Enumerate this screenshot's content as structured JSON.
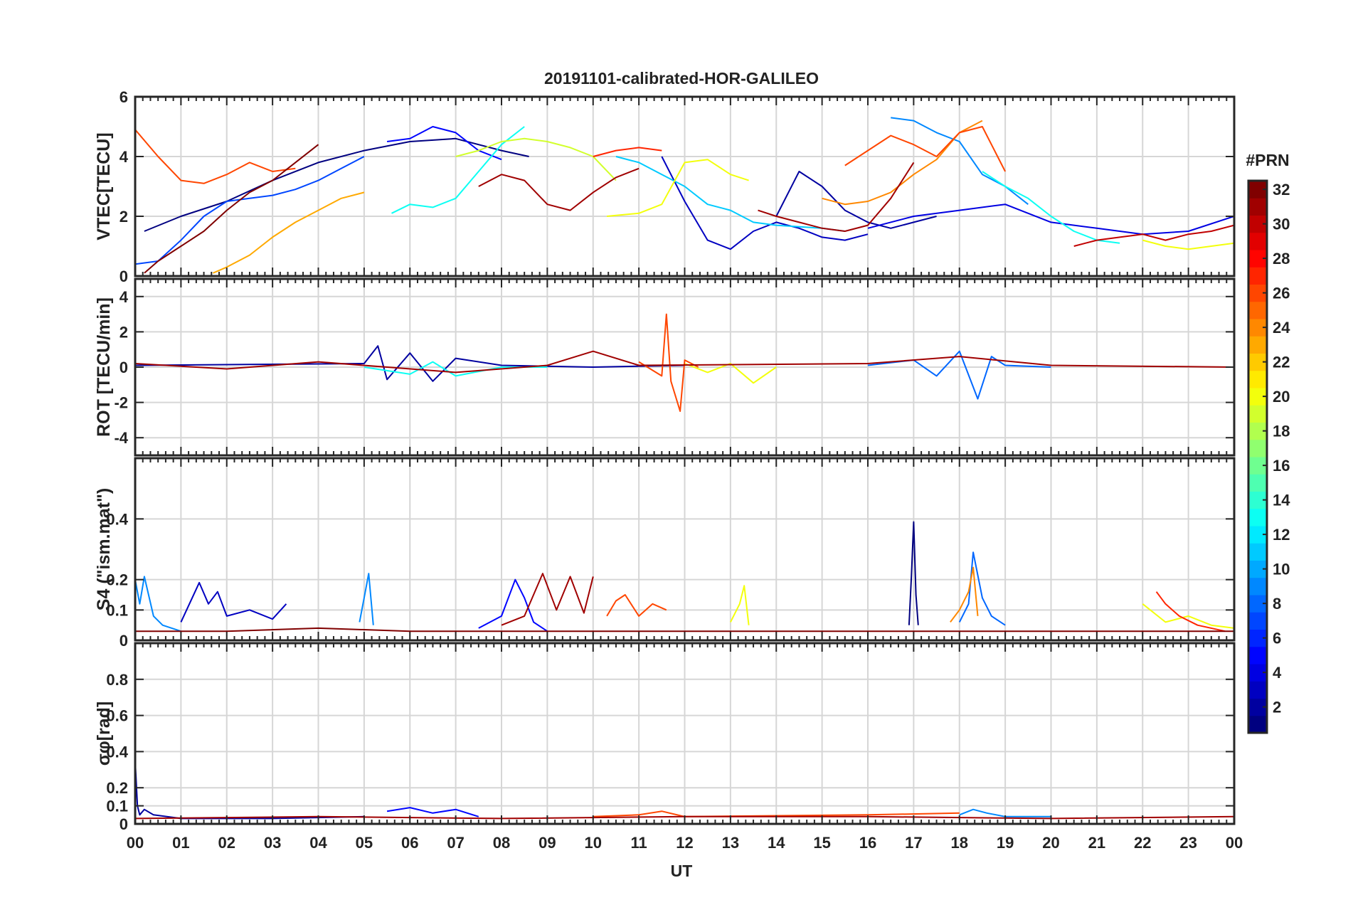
{
  "title": "20191101-calibrated-HOR-GALILEO",
  "xlabel": "UT",
  "x_ticks": [
    "00",
    "01",
    "02",
    "03",
    "04",
    "05",
    "06",
    "07",
    "08",
    "09",
    "10",
    "11",
    "12",
    "13",
    "14",
    "15",
    "16",
    "17",
    "18",
    "19",
    "20",
    "21",
    "22",
    "23",
    "00"
  ],
  "colorbar": {
    "label": "#PRN",
    "ticks": [
      "2",
      "4",
      "6",
      "8",
      "10",
      "12",
      "14",
      "16",
      "18",
      "20",
      "22",
      "24",
      "26",
      "28",
      "30",
      "32"
    ],
    "range": [
      1,
      32
    ]
  },
  "chart_data": [
    {
      "type": "line",
      "ylabel": "VTEC[TECU]",
      "ylim": [
        0,
        6
      ],
      "yticks": [
        "0",
        "2",
        "4",
        "6"
      ],
      "xlim": [
        0,
        24
      ],
      "series": [
        {
          "prn": 1,
          "x": [
            0.2,
            1.0,
            2.0,
            3.0,
            4.0,
            5.0,
            6.0,
            7.0,
            8.0,
            8.6
          ],
          "y": [
            1.5,
            2.0,
            2.5,
            3.2,
            3.8,
            4.2,
            4.5,
            4.6,
            4.2,
            4.0
          ]
        },
        {
          "prn": 2,
          "x": [
            14.0,
            14.5,
            15.0,
            15.5,
            16.0,
            16.5,
            17.0,
            17.5
          ],
          "y": [
            2.0,
            3.5,
            3.0,
            2.2,
            1.8,
            1.6,
            1.8,
            2.0
          ]
        },
        {
          "prn": 3,
          "x": [
            11.5,
            12.0,
            12.5,
            13.0,
            13.5,
            14.0,
            14.5,
            15.0,
            15.5,
            16.0
          ],
          "y": [
            4.0,
            2.5,
            1.2,
            0.9,
            1.5,
            1.8,
            1.6,
            1.3,
            1.2,
            1.4
          ]
        },
        {
          "prn": 4,
          "x": [
            16.0,
            17.0,
            18.0,
            19.0,
            20.0,
            21.0,
            22.0,
            23.0,
            24.0
          ],
          "y": [
            1.6,
            2.0,
            2.2,
            2.4,
            1.8,
            1.6,
            1.4,
            1.5,
            2.0
          ]
        },
        {
          "prn": 5,
          "x": [
            5.5,
            6.0,
            6.5,
            7.0,
            7.5,
            8.0
          ],
          "y": [
            4.5,
            4.6,
            5.0,
            4.8,
            4.2,
            3.9
          ]
        },
        {
          "prn": 7,
          "x": [
            0.0,
            0.5,
            1.0,
            1.5,
            2.0,
            2.5,
            3.0,
            3.5,
            4.0,
            4.5,
            5.0
          ],
          "y": [
            0.4,
            0.5,
            1.2,
            2.0,
            2.5,
            2.6,
            2.7,
            2.9,
            3.2,
            3.6,
            4.0
          ]
        },
        {
          "prn": 9,
          "x": [
            16.5,
            17.0,
            17.5,
            18.0,
            18.5,
            19.0,
            19.5
          ],
          "y": [
            5.3,
            5.2,
            4.8,
            4.5,
            3.4,
            3.0,
            2.4
          ]
        },
        {
          "prn": 11,
          "x": [
            10.5,
            11.0,
            11.5,
            12.0,
            12.5,
            13.0,
            13.5,
            14.0,
            15.0,
            15.5
          ],
          "y": [
            4.0,
            3.8,
            3.4,
            3.0,
            2.4,
            2.2,
            1.8,
            1.7,
            1.6,
            1.5
          ]
        },
        {
          "prn": 13,
          "x": [
            5.6,
            6.0,
            6.5,
            7.0,
            7.5,
            8.0,
            8.5
          ],
          "y": [
            2.1,
            2.4,
            2.3,
            2.6,
            3.5,
            4.4,
            5.0
          ]
        },
        {
          "prn": 13,
          "x": [
            18.5,
            19.0,
            19.5,
            20.0,
            20.5,
            21.0,
            21.5
          ],
          "y": [
            3.5,
            3.0,
            2.6,
            2.0,
            1.5,
            1.2,
            1.1
          ]
        },
        {
          "prn": 19,
          "x": [
            7.0,
            7.5,
            8.0,
            8.5,
            9.0,
            9.5,
            10.0,
            10.5
          ],
          "y": [
            4.0,
            4.2,
            4.5,
            4.6,
            4.5,
            4.3,
            4.0,
            3.2
          ]
        },
        {
          "prn": 20,
          "x": [
            10.3,
            11.0,
            11.5,
            12.0,
            12.5,
            13.0,
            13.4
          ],
          "y": [
            2.0,
            2.1,
            2.4,
            3.8,
            3.9,
            3.4,
            3.2
          ]
        },
        {
          "prn": 20,
          "x": [
            22.0,
            22.5,
            23.0,
            23.5,
            24.0
          ],
          "y": [
            1.2,
            1.0,
            0.9,
            1.0,
            1.1
          ]
        },
        {
          "prn": 23,
          "x": [
            1.7,
            2.0,
            2.5,
            3.0,
            3.5,
            4.0,
            4.5,
            5.0
          ],
          "y": [
            0.1,
            0.3,
            0.7,
            1.3,
            1.8,
            2.2,
            2.6,
            2.8
          ]
        },
        {
          "prn": 24,
          "x": [
            15.0,
            15.5,
            16.0,
            16.5,
            17.0,
            17.5,
            18.0,
            18.5
          ],
          "y": [
            2.6,
            2.4,
            2.5,
            2.8,
            3.4,
            3.9,
            4.8,
            5.2
          ]
        },
        {
          "prn": 26,
          "x": [
            0.0,
            0.5,
            1.0,
            1.5,
            2.0,
            2.5,
            3.0,
            3.5
          ],
          "y": [
            4.9,
            4.0,
            3.2,
            3.1,
            3.4,
            3.8,
            3.5,
            3.6
          ]
        },
        {
          "prn": 26,
          "x": [
            15.5,
            16.0,
            16.5,
            17.0,
            17.5,
            18.0,
            18.5,
            19.0
          ],
          "y": [
            3.7,
            4.2,
            4.7,
            4.4,
            4.0,
            4.8,
            5.0,
            3.5
          ]
        },
        {
          "prn": 27,
          "x": [
            10.0,
            10.5,
            11.0,
            11.5
          ],
          "y": [
            4.0,
            4.2,
            4.3,
            4.2
          ]
        },
        {
          "prn": 30,
          "x": [
            20.5,
            21.0,
            21.5,
            22.0,
            22.5,
            23.0,
            23.5,
            24.0
          ],
          "y": [
            1.0,
            1.2,
            1.3,
            1.4,
            1.2,
            1.4,
            1.5,
            1.7
          ]
        },
        {
          "prn": 31,
          "x": [
            7.5,
            8.0,
            8.5,
            9.0,
            9.5,
            10.0,
            10.5,
            11.0
          ],
          "y": [
            3.0,
            3.4,
            3.2,
            2.4,
            2.2,
            2.8,
            3.3,
            3.6
          ]
        },
        {
          "prn": 31,
          "x": [
            13.6,
            14.0,
            14.5,
            15.0,
            15.5,
            16.0,
            16.5,
            17.0
          ],
          "y": [
            2.2,
            2.0,
            1.8,
            1.6,
            1.5,
            1.7,
            2.6,
            3.8
          ]
        },
        {
          "prn": 32,
          "x": [
            0.2,
            0.5,
            1.0,
            1.5,
            2.0,
            2.5,
            3.0,
            3.5,
            4.0
          ],
          "y": [
            0.1,
            0.5,
            1.0,
            1.5,
            2.2,
            2.8,
            3.2,
            3.8,
            4.4
          ]
        }
      ]
    },
    {
      "type": "line",
      "ylabel": "ROT [TECU/min]",
      "ylim": [
        -5,
        5
      ],
      "yticks": [
        "-4",
        "-2",
        "0",
        "2",
        "4"
      ],
      "xlim": [
        0,
        24
      ],
      "series": [
        {
          "prn": 2,
          "x": [
            0.0,
            5.0,
            5.3,
            5.5,
            6.0,
            6.5,
            7.0,
            8.0,
            10.0,
            12.0
          ],
          "y": [
            0.1,
            0.2,
            1.2,
            -0.7,
            0.8,
            -0.8,
            0.5,
            0.1,
            0.0,
            0.1
          ]
        },
        {
          "prn": 8,
          "x": [
            16.0,
            17.0,
            17.5,
            18.0,
            18.4,
            18.7,
            19.0,
            20.0
          ],
          "y": [
            0.1,
            0.4,
            -0.5,
            0.9,
            -1.8,
            0.6,
            0.1,
            0.0
          ]
        },
        {
          "prn": 13,
          "x": [
            5.0,
            6.0,
            6.5,
            7.0,
            8.0,
            9.0
          ],
          "y": [
            0.0,
            -0.4,
            0.3,
            -0.5,
            0.0,
            0.0
          ]
        },
        {
          "prn": 20,
          "x": [
            12.0,
            12.5,
            13.0,
            13.5,
            14.0
          ],
          "y": [
            0.2,
            -0.3,
            0.2,
            -0.9,
            0.0
          ]
        },
        {
          "prn": 26,
          "x": [
            11.0,
            11.5,
            11.6,
            11.7,
            11.9,
            12.0,
            12.3
          ],
          "y": [
            0.3,
            -0.5,
            3.0,
            -0.8,
            -2.5,
            0.4,
            0.0
          ]
        },
        {
          "prn": 31,
          "x": [
            0.0,
            2.0,
            4.0,
            7.0,
            9.0,
            10.0,
            11.0,
            16.0,
            18.0,
            20.0,
            24.0
          ],
          "y": [
            0.2,
            -0.1,
            0.3,
            -0.3,
            0.1,
            0.9,
            0.1,
            0.2,
            0.6,
            0.1,
            0.0
          ]
        }
      ]
    },
    {
      "type": "line",
      "ylabel": "S4 (\"ism.mat\")",
      "ylim": [
        0,
        0.6
      ],
      "yticks": [
        "0",
        "0.1",
        "0.2",
        "0.4"
      ],
      "xlim": [
        0,
        24
      ],
      "series": [
        {
          "prn": 1,
          "x": [
            16.9,
            16.95,
            17.0,
            17.05,
            17.1
          ],
          "y": [
            0.05,
            0.21,
            0.39,
            0.15,
            0.05
          ]
        },
        {
          "prn": 3,
          "x": [
            1.0,
            1.4,
            1.6,
            1.8,
            2.0,
            2.5,
            3.0,
            3.3
          ],
          "y": [
            0.06,
            0.19,
            0.12,
            0.16,
            0.08,
            0.1,
            0.07,
            0.12
          ]
        },
        {
          "prn": 5,
          "x": [
            7.5,
            8.0,
            8.3,
            8.5,
            8.7,
            9.0
          ],
          "y": [
            0.04,
            0.08,
            0.2,
            0.14,
            0.06,
            0.03
          ]
        },
        {
          "prn": 8,
          "x": [
            18.0,
            18.2,
            18.3,
            18.5,
            18.7,
            19.0
          ],
          "y": [
            0.06,
            0.12,
            0.29,
            0.14,
            0.08,
            0.05
          ]
        },
        {
          "prn": 9,
          "x": [
            0.0,
            0.1,
            0.2,
            0.4,
            0.6,
            1.0
          ],
          "y": [
            0.2,
            0.12,
            0.21,
            0.08,
            0.05,
            0.03
          ]
        },
        {
          "prn": 9,
          "x": [
            4.9,
            5.0,
            5.1,
            5.2
          ],
          "y": [
            0.06,
            0.14,
            0.22,
            0.05
          ]
        },
        {
          "prn": 20,
          "x": [
            13.0,
            13.2,
            13.3,
            13.4
          ],
          "y": [
            0.06,
            0.12,
            0.18,
            0.05
          ]
        },
        {
          "prn": 20,
          "x": [
            22.0,
            22.5,
            23.0,
            23.5,
            24.0
          ],
          "y": [
            0.12,
            0.06,
            0.08,
            0.05,
            0.04
          ]
        },
        {
          "prn": 24,
          "x": [
            17.8,
            18.0,
            18.2,
            18.3,
            18.4
          ],
          "y": [
            0.06,
            0.1,
            0.16,
            0.24,
            0.08
          ]
        },
        {
          "prn": 26,
          "x": [
            10.3,
            10.5,
            10.7,
            11.0,
            11.3,
            11.6
          ],
          "y": [
            0.08,
            0.13,
            0.15,
            0.08,
            0.12,
            0.1
          ]
        },
        {
          "prn": 27,
          "x": [
            22.3,
            22.5,
            22.8,
            23.2,
            23.8
          ],
          "y": [
            0.16,
            0.12,
            0.08,
            0.05,
            0.03
          ]
        },
        {
          "prn": 31,
          "x": [
            8.0,
            8.5,
            8.9,
            9.2,
            9.5,
            9.8,
            10.0
          ],
          "y": [
            0.05,
            0.08,
            0.22,
            0.1,
            0.21,
            0.09,
            0.21
          ]
        },
        {
          "prn": 32,
          "x": [
            0.0,
            2.0,
            4.0,
            6.0,
            8.0,
            12.0,
            16.0,
            20.0,
            24.0
          ],
          "y": [
            0.03,
            0.03,
            0.04,
            0.03,
            0.03,
            0.03,
            0.03,
            0.03,
            0.03
          ]
        }
      ]
    },
    {
      "type": "line",
      "ylabel": "σφ[rad]",
      "ylim": [
        0,
        1.0
      ],
      "yticks": [
        "0",
        "0.1",
        "0.2",
        "0.4",
        "0.6",
        "0.8"
      ],
      "xlim": [
        0,
        24
      ],
      "series": [
        {
          "prn": 2,
          "x": [
            0.0,
            0.05,
            0.1,
            0.2,
            0.4,
            1.0,
            3.0,
            5.0
          ],
          "y": [
            0.35,
            0.1,
            0.05,
            0.08,
            0.05,
            0.03,
            0.03,
            0.04
          ]
        },
        {
          "prn": 5,
          "x": [
            5.5,
            6.0,
            6.5,
            7.0,
            7.5
          ],
          "y": [
            0.07,
            0.09,
            0.06,
            0.08,
            0.04
          ]
        },
        {
          "prn": 9,
          "x": [
            18.0,
            18.3,
            18.6,
            19.0,
            20.0
          ],
          "y": [
            0.05,
            0.08,
            0.06,
            0.04,
            0.04
          ]
        },
        {
          "prn": 26,
          "x": [
            10.0,
            11.0,
            11.5,
            12.0,
            16.0,
            18.0
          ],
          "y": [
            0.04,
            0.05,
            0.07,
            0.04,
            0.05,
            0.06
          ]
        },
        {
          "prn": 31,
          "x": [
            0.0,
            4.0,
            8.0,
            12.0,
            16.0,
            20.0,
            24.0
          ],
          "y": [
            0.03,
            0.04,
            0.03,
            0.04,
            0.04,
            0.03,
            0.04
          ]
        }
      ]
    }
  ]
}
